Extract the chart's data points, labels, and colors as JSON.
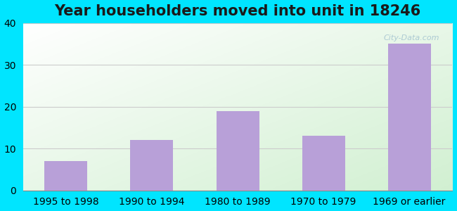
{
  "title": "Year householders moved into unit in 18246",
  "categories": [
    "1995 to 1998",
    "1990 to 1994",
    "1980 to 1989",
    "1970 to 1979",
    "1969 or earlier"
  ],
  "values": [
    7,
    12,
    19,
    13,
    35
  ],
  "bar_color": "#b8a0d8",
  "ylim": [
    0,
    40
  ],
  "yticks": [
    0,
    10,
    20,
    30,
    40
  ],
  "background_outer": "#00e5ff",
  "title_fontsize": 15,
  "tick_fontsize": 10,
  "grid_color": "#cccccc",
  "watermark": "City-Data.com"
}
